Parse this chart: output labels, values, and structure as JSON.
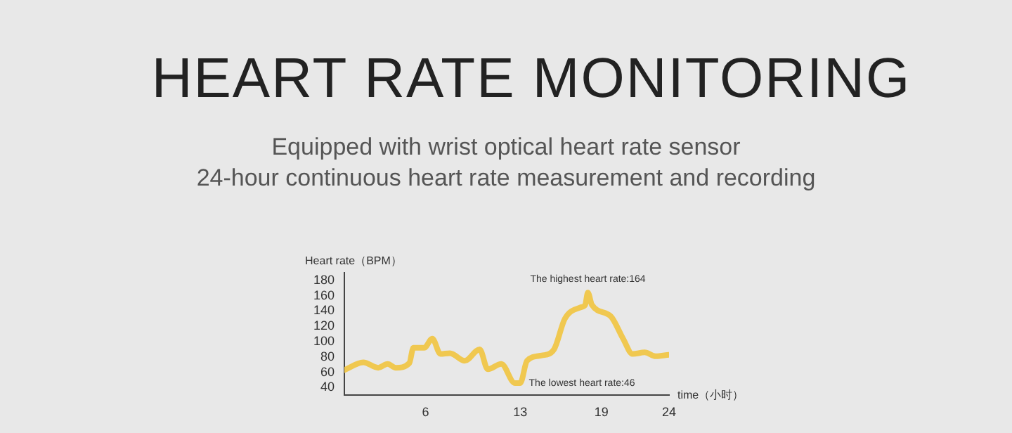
{
  "chart_data": {
    "type": "line",
    "title": "HEART RATE MONITORING",
    "subtitle": "Equipped with wrist optical heart rate sensor\n24-hour continuous heart rate measurement and recording",
    "xlabel": "time（小时）",
    "ylabel": "Heart rate（BPM）",
    "annotations": [
      {
        "text": "The highest heart rate:164",
        "x": 18,
        "y": 164
      },
      {
        "text": "The lowest heart rate:46",
        "x": 12.6,
        "y": 46
      }
    ],
    "series": [
      {
        "color": "#f0c850",
        "x": [
          0,
          1.4,
          2.5,
          3.2,
          3.8,
          4.8,
          5.1,
          5.9,
          6.5,
          7.1,
          7.8,
          8.9,
          10,
          10.6,
          11.6,
          12.6,
          13,
          13.5,
          14.6,
          15.5,
          16.3,
          17.5,
          17.8,
          18,
          18.3,
          19.7,
          20.6,
          21.3,
          22.2,
          23,
          24
        ],
        "values": [
          63,
          73,
          66,
          71,
          66,
          72,
          92,
          92,
          104,
          84,
          85,
          75,
          90,
          64,
          71,
          46,
          46,
          75,
          82,
          90,
          130,
          145,
          148,
          164,
          148,
          133,
          104,
          84,
          86,
          81,
          83
        ]
      }
    ],
    "xlim": [
      0,
      24
    ],
    "xticks": [
      6,
      13,
      19,
      24
    ],
    "ylim": [
      30,
      190
    ],
    "yticks": [
      40,
      60,
      80,
      100,
      120,
      140,
      160,
      180
    ],
    "grid": false,
    "legend": false
  }
}
